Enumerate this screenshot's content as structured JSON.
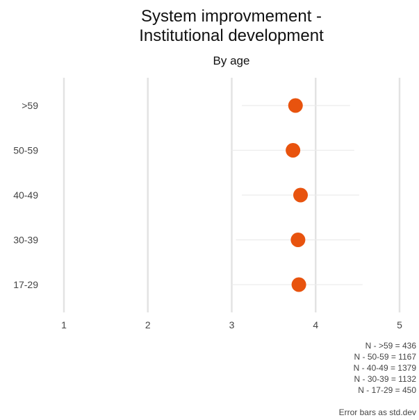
{
  "chart_data": {
    "type": "scatter",
    "title_lines": [
      "System improvmement -",
      "Institutional development"
    ],
    "subtitle": "By age",
    "xlabel": "",
    "ylabel": "",
    "xlim": [
      1,
      5
    ],
    "x_ticks": [
      "1",
      "2",
      "3",
      "4",
      "5"
    ],
    "categories": [
      ">59",
      "50-59",
      "40-49",
      "30-39",
      "17-29"
    ],
    "series": [
      {
        "values": [
          3.76,
          3.73,
          3.82,
          3.79,
          3.8
        ],
        "error_low": [
          3.12,
          3.0,
          3.12,
          3.05,
          3.0
        ],
        "error_high": [
          4.41,
          4.46,
          4.52,
          4.53,
          4.56
        ]
      }
    ],
    "notes": [
      "N - >59 = 436",
      "N - 50-59 = 1167",
      "N - 40-49 = 1379",
      "N - 30-39 = 1132",
      "N - 17-29 = 450"
    ],
    "caption": "Error bars as std.dev",
    "grid": true,
    "colors": {
      "point": "#E8530E",
      "grid": "#e3e3e3",
      "errorbar": "#ececec"
    }
  }
}
